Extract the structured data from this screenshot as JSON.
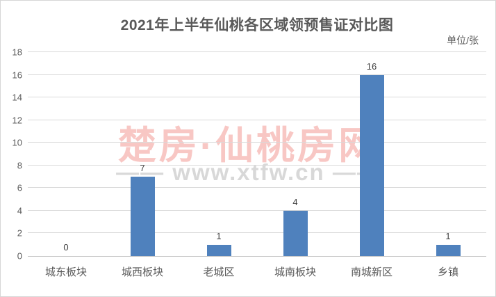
{
  "title": "2021年上半年仙桃各区域领预售证对比图",
  "unit_label": "单位/张",
  "watermark": {
    "main": "楚房·仙桃房网",
    "sub": "—— www.xtfw.cn ——"
  },
  "colors": {
    "bar": "#4f81bd",
    "gridline": "#d9d9d9",
    "axis_line": "#bfbfbf",
    "title_text": "#595959",
    "tick_text": "#595959",
    "data_label_text": "#3f3f3f",
    "watermark_main": "#f8c7c4",
    "watermark_sub": "#d8d8d8"
  },
  "chart_data": {
    "type": "bar",
    "title": "2021年上半年仙桃各区域领预售证对比图",
    "categories": [
      "城东板块",
      "城西板块",
      "老城区",
      "城南板块",
      "南城新区",
      "乡镇"
    ],
    "values": [
      0,
      7,
      1,
      4,
      16,
      1
    ],
    "data_labels": [
      "0",
      "7",
      "1",
      "4",
      "16",
      "1"
    ],
    "xlabel": "",
    "ylabel": "单位/张",
    "ylim": [
      0,
      18
    ],
    "yticks": [
      0,
      2,
      4,
      6,
      8,
      10,
      12,
      14,
      16,
      18
    ],
    "grid": true,
    "legend_position": "none",
    "show_data_labels": true
  }
}
